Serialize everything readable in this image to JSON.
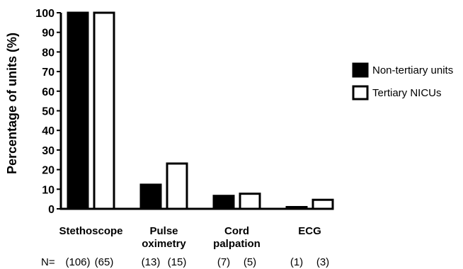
{
  "chart_data": {
    "type": "bar",
    "title": "",
    "xlabel": "",
    "ylabel": "Percentage of units (%)",
    "ylim": [
      0,
      100
    ],
    "yticks": [
      "0",
      "10",
      "20",
      "30",
      "40",
      "50",
      "60",
      "70",
      "80",
      "90",
      "100"
    ],
    "categories": [
      [
        "Stethoscope"
      ],
      [
        "Pulse",
        "oximetry"
      ],
      [
        "Cord",
        "palpation"
      ],
      [
        "ECG"
      ]
    ],
    "series": [
      {
        "name": "Non-tertiary units",
        "values": [
          100,
          12.3,
          6.6,
          0.9
        ],
        "fill": "#000000"
      },
      {
        "name": "Tertiary NICUs",
        "values": [
          100,
          23.1,
          7.7,
          4.6
        ],
        "fill": "#ffffff"
      }
    ],
    "n_prefix": "N=",
    "n_labels": [
      [
        "(106)",
        "(65)"
      ],
      [
        "(13)",
        "(15)"
      ],
      [
        "(7)",
        "(5)"
      ],
      [
        "(1)",
        "(3)"
      ]
    ],
    "legend_position": "right",
    "grid": false
  }
}
